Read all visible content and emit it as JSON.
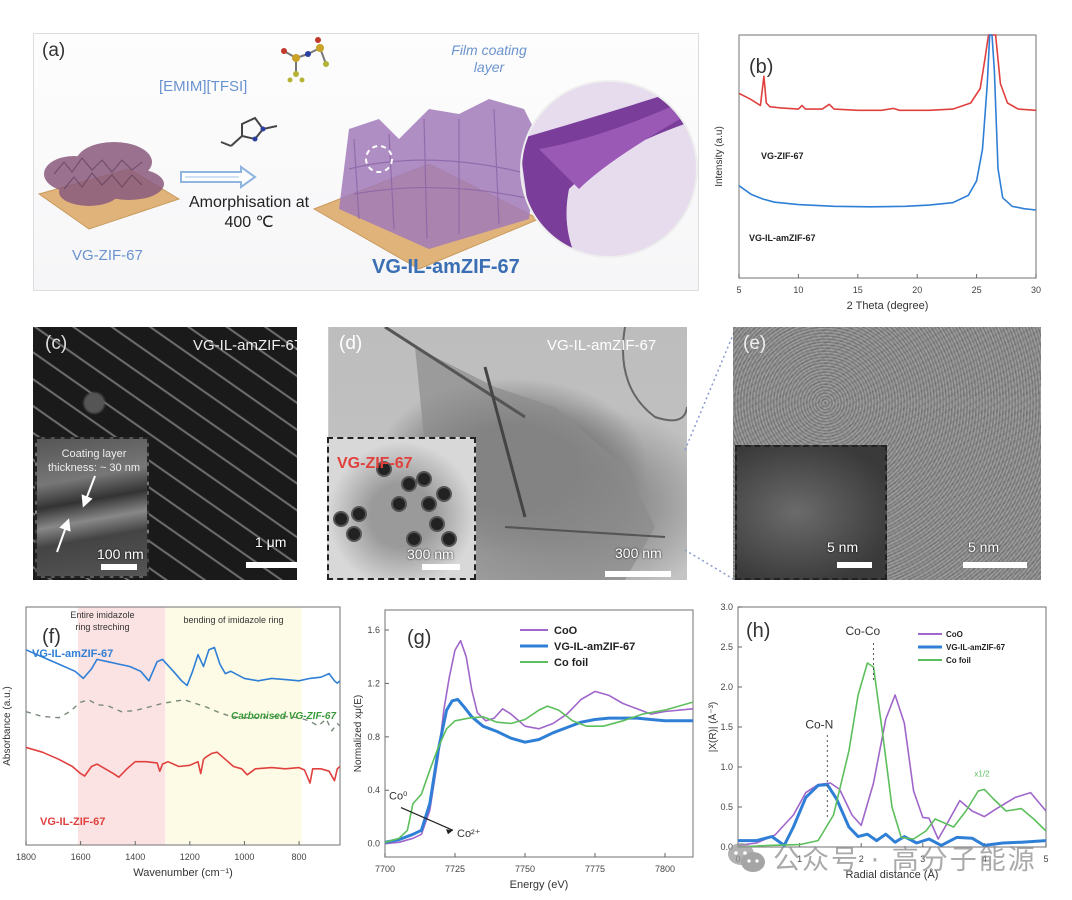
{
  "panels": {
    "a": {
      "label": "(a)",
      "ionic_liquid": "[EMIM][TFSI]",
      "film_label_line1": "Film coating",
      "film_label_line2": "layer",
      "process_line1": "Amorphisation at",
      "process_line2": "400 ℃",
      "start_material": "VG-ZIF-67",
      "product": "VG-IL-amZIF-67"
    },
    "c": {
      "label": "(c)",
      "title": "VG-IL-amZIF-67",
      "inset_note_line1": "Coating layer",
      "inset_note_line2": "thickness: ~ 30 nm",
      "inset_scale": "100 nm",
      "main_scale": "1 μm"
    },
    "d": {
      "label": "(d)",
      "title": "VG-IL-amZIF-67",
      "inset_title": "VG-ZIF-67",
      "inset_scale": "300 nm",
      "main_scale": "300 nm"
    },
    "e": {
      "label": "(e)",
      "inset_scale": "5 nm",
      "main_scale": "5 nm"
    }
  },
  "colors": {
    "red": "#e0413f",
    "blue": "#2f7fd6",
    "purple": "#a066c9",
    "green": "#5cbf5c",
    "dark_green": "#3a9a3a",
    "pink_band": "#fbe3e3",
    "yellow_band": "#fdfbe6",
    "product_blue": "#3a6fb3",
    "label_blue": "#6a93cf"
  },
  "chart_data": [
    {
      "id": "b",
      "panel_label": "(b)",
      "type": "line",
      "title": "",
      "xlabel": "2 Theta (degree)",
      "ylabel": "Intensity (a.u)",
      "xlim": [
        5,
        30
      ],
      "ylim": [
        0,
        10
      ],
      "xticks": [
        5,
        10,
        15,
        20,
        25,
        30
      ],
      "series": [
        {
          "name": "VG-ZIF-67",
          "color": "#e0413f",
          "x": [
            5,
            6,
            6.8,
            7.1,
            7.3,
            7.6,
            8.5,
            10,
            10.3,
            10.6,
            12,
            12.6,
            13,
            15,
            17,
            18,
            18.5,
            21,
            23,
            24.5,
            25.3,
            25.7,
            26.0,
            26.3,
            26.6,
            27.0,
            27.6,
            28.5,
            30
          ],
          "y": [
            7.6,
            7.35,
            7.1,
            8.3,
            7.2,
            7.05,
            7.0,
            6.95,
            7.1,
            6.95,
            6.95,
            7.15,
            6.95,
            6.9,
            6.9,
            6.98,
            6.9,
            6.9,
            6.95,
            7.2,
            7.8,
            9.0,
            10,
            10,
            10,
            8.0,
            7.2,
            6.95,
            6.9
          ]
        },
        {
          "name": "VG-IL-amZIF-67",
          "color": "#2f7fd6",
          "x": [
            5,
            6,
            7,
            8,
            10,
            13,
            16,
            19,
            21,
            23,
            24.3,
            25.0,
            25.5,
            25.9,
            26.1,
            26.3,
            26.5,
            26.8,
            27.2,
            28,
            29,
            30
          ],
          "y": [
            3.8,
            3.45,
            3.25,
            3.12,
            3.02,
            2.95,
            2.93,
            2.95,
            3.0,
            3.1,
            3.4,
            4.0,
            5.3,
            8.0,
            10,
            10,
            8.5,
            4.5,
            3.3,
            2.95,
            2.85,
            2.8
          ]
        }
      ],
      "annotations": [
        "VG-ZIF-67",
        "VG-IL-amZIF-67"
      ]
    },
    {
      "id": "f",
      "panel_label": "(f)",
      "type": "line",
      "xlabel": "Wavenumber (cm⁻¹)",
      "ylabel": "Absorbance (a.u.)",
      "xlim": [
        1800,
        650
      ],
      "ylim": [
        0,
        10
      ],
      "xticks": [
        1800,
        1600,
        1400,
        1200,
        1000,
        800
      ],
      "bands": [
        {
          "from": 1610,
          "to": 1290,
          "label_line1": "Entire imidazole",
          "label_line2": "ring streching",
          "color": "#fbe3e3"
        },
        {
          "from": 1290,
          "to": 790,
          "label": "bending of imidazole ring",
          "color": "#fdfbe6"
        }
      ],
      "series": [
        {
          "name": "VG-IL-amZIF-67",
          "color": "#2f7fd6",
          "style": "solid",
          "x": [
            1800,
            1740,
            1680,
            1620,
            1590,
            1560,
            1540,
            1500,
            1460,
            1420,
            1380,
            1350,
            1320,
            1300,
            1260,
            1230,
            1210,
            1190,
            1170,
            1150,
            1130,
            1110,
            1090,
            1070,
            1050,
            1000,
            950,
            900,
            850,
            800,
            760,
            720,
            690,
            670,
            660,
            650
          ],
          "y": [
            8.2,
            7.9,
            7.6,
            7.3,
            7.0,
            7.4,
            7.8,
            7.7,
            7.6,
            7.5,
            7.3,
            6.9,
            7.7,
            7.8,
            7.3,
            6.9,
            6.7,
            7.3,
            8.0,
            7.5,
            8.2,
            8.3,
            7.6,
            7.2,
            7.3,
            7.0,
            6.9,
            7.0,
            6.95,
            6.9,
            7.0,
            7.05,
            7.2,
            6.9,
            6.8,
            6.9
          ]
        },
        {
          "name": "Carbonised VG-ZIF-67",
          "color": "#7a8a7a",
          "style": "dashed",
          "x": [
            1800,
            1740,
            1680,
            1640,
            1600,
            1570,
            1540,
            1500,
            1450,
            1400,
            1350,
            1300,
            1250,
            1220,
            1180,
            1140,
            1100,
            1050,
            1000,
            950,
            900,
            850,
            800,
            760,
            730,
            700,
            680,
            660,
            650
          ],
          "y": [
            5.6,
            5.4,
            5.35,
            5.6,
            6.0,
            6.1,
            5.9,
            5.85,
            5.6,
            5.65,
            5.8,
            5.95,
            6.05,
            6.1,
            5.95,
            5.8,
            5.6,
            5.4,
            5.35,
            5.35,
            5.4,
            5.4,
            5.35,
            5.2,
            5.0,
            5.3,
            4.8,
            5.1,
            5.0
          ]
        },
        {
          "name": "VG-IL-ZIF-67",
          "color": "#e0413f",
          "style": "solid",
          "x": [
            1800,
            1740,
            1680,
            1630,
            1600,
            1585,
            1560,
            1540,
            1510,
            1480,
            1460,
            1430,
            1400,
            1360,
            1320,
            1310,
            1300,
            1280,
            1240,
            1200,
            1170,
            1160,
            1150,
            1140,
            1120,
            1100,
            1070,
            1040,
            1010,
            990,
            960,
            900,
            850,
            800,
            780,
            760,
            750,
            720,
            690,
            670,
            660,
            650
          ],
          "y": [
            4.1,
            3.9,
            3.6,
            3.3,
            3.0,
            2.9,
            3.3,
            3.4,
            3.2,
            3.0,
            2.85,
            3.2,
            3.5,
            3.5,
            3.45,
            3.1,
            3.4,
            3.5,
            3.3,
            3.35,
            3.5,
            3.0,
            3.6,
            3.7,
            3.85,
            3.9,
            3.6,
            3.3,
            3.2,
            2.95,
            3.2,
            3.25,
            3.2,
            3.25,
            3.15,
            2.6,
            3.2,
            3.2,
            3.1,
            2.7,
            3.2,
            3.3
          ]
        }
      ],
      "annotations": [
        "VG-IL-amZIF-67",
        "Carbonised VG-ZIF-67",
        "VG-IL-ZIF-67"
      ]
    },
    {
      "id": "g",
      "panel_label": "(g)",
      "type": "line",
      "xlabel": "Energy (eV)",
      "ylabel": "Normalized xμ(E)",
      "xlim": [
        7700,
        7810
      ],
      "ylim": [
        -0.1,
        1.75
      ],
      "xticks": [
        7700,
        7725,
        7750,
        7775,
        7800
      ],
      "yticks": [
        0.0,
        0.4,
        0.8,
        1.2,
        1.6
      ],
      "legend": "top-right",
      "series": [
        {
          "name": "CoO",
          "color": "#a066c9",
          "x": [
            7700,
            7705,
            7710,
            7713,
            7716,
            7719,
            7721,
            7723,
            7725,
            7727,
            7729,
            7731,
            7733,
            7736,
            7739,
            7742,
            7745,
            7750,
            7755,
            7760,
            7765,
            7770,
            7775,
            7780,
            7785,
            7790,
            7795,
            7800,
            7810
          ],
          "y": [
            0.0,
            0.01,
            0.04,
            0.07,
            0.25,
            0.65,
            1.0,
            1.25,
            1.45,
            1.52,
            1.4,
            1.15,
            0.98,
            0.92,
            0.94,
            1.01,
            0.97,
            0.88,
            0.86,
            0.9,
            0.97,
            1.08,
            1.14,
            1.11,
            1.05,
            1.01,
            0.97,
            0.99,
            1.01
          ]
        },
        {
          "name": "VG-IL-amZIF-67",
          "color": "#2f7fd6",
          "x": [
            7700,
            7705,
            7710,
            7713,
            7716,
            7719,
            7722,
            7724,
            7726,
            7728,
            7731,
            7735,
            7740,
            7745,
            7750,
            7755,
            7760,
            7765,
            7770,
            7775,
            7780,
            7785,
            7790,
            7795,
            7800,
            7810
          ],
          "y": [
            0.01,
            0.03,
            0.07,
            0.1,
            0.3,
            0.7,
            1.0,
            1.07,
            1.08,
            1.03,
            0.95,
            0.88,
            0.84,
            0.79,
            0.76,
            0.78,
            0.83,
            0.87,
            0.91,
            0.93,
            0.94,
            0.94,
            0.94,
            0.93,
            0.92,
            0.92
          ]
        },
        {
          "name": "Co foil",
          "color": "#5cbf5c",
          "x": [
            7700,
            7705,
            7708,
            7710,
            7713,
            7716,
            7719,
            7722,
            7725,
            7730,
            7735,
            7740,
            7745,
            7750,
            7755,
            7758,
            7762,
            7767,
            7772,
            7778,
            7785,
            7792,
            7800,
            7810
          ],
          "y": [
            0.01,
            0.04,
            0.1,
            0.3,
            0.37,
            0.55,
            0.72,
            0.86,
            0.92,
            0.94,
            0.95,
            0.91,
            0.9,
            0.93,
            1.0,
            1.03,
            1.0,
            0.92,
            0.88,
            0.88,
            0.92,
            0.97,
            1.0,
            1.06
          ]
        }
      ],
      "annotations": [
        {
          "text": "Co⁰",
          "arrow_to": "Co²⁺"
        }
      ]
    },
    {
      "id": "h",
      "panel_label": "(h)",
      "type": "line",
      "xlabel": "Radial distance (Å)",
      "ylabel": "|X(R)| (Å⁻³)",
      "xlim": [
        0,
        5
      ],
      "ylim": [
        0,
        3.0
      ],
      "xticks": [
        0,
        1,
        2,
        3,
        4,
        5
      ],
      "yticks": [
        0.0,
        0.5,
        1.0,
        1.5,
        2.0,
        2.5,
        3.0
      ],
      "legend": "top-right",
      "series": [
        {
          "name": "CoO",
          "color": "#a066c9",
          "x": [
            0,
            0.3,
            0.6,
            0.9,
            1.1,
            1.3,
            1.5,
            1.65,
            1.85,
            2.0,
            2.2,
            2.4,
            2.55,
            2.7,
            2.85,
            3.0,
            3.1,
            3.25,
            3.4,
            3.6,
            3.8,
            4.0,
            4.2,
            4.5,
            4.75,
            5.0
          ],
          "y": [
            0.02,
            0.05,
            0.15,
            0.4,
            0.68,
            0.78,
            0.8,
            0.72,
            0.4,
            0.27,
            0.8,
            1.6,
            1.9,
            1.55,
            0.7,
            0.37,
            0.36,
            0.1,
            0.3,
            0.58,
            0.45,
            0.38,
            0.48,
            0.62,
            0.68,
            0.45
          ]
        },
        {
          "name": "VG-IL-amZIF-67",
          "color": "#2f7fd6",
          "x": [
            0,
            0.3,
            0.55,
            0.75,
            0.9,
            1.1,
            1.3,
            1.45,
            1.6,
            1.8,
            1.95,
            2.1,
            2.25,
            2.4,
            2.55,
            2.7,
            2.9,
            3.1,
            3.3,
            3.55,
            3.8,
            4.0,
            4.3,
            4.6,
            5.0
          ],
          "y": [
            0.08,
            0.08,
            0.13,
            0.02,
            0.25,
            0.62,
            0.77,
            0.78,
            0.6,
            0.25,
            0.13,
            0.16,
            0.08,
            0.16,
            0.06,
            0.13,
            0.05,
            0.1,
            0.02,
            0.12,
            0.11,
            0.02,
            0.05,
            0.06,
            0.08
          ]
        },
        {
          "name": "Co foil",
          "color": "#5cbf5c",
          "x": [
            0,
            0.5,
            1.0,
            1.3,
            1.55,
            1.8,
            1.95,
            2.1,
            2.2,
            2.35,
            2.5,
            2.65,
            2.85,
            3.05,
            3.2,
            3.35,
            3.5,
            3.7,
            3.9,
            4.0,
            4.15,
            4.35,
            4.6,
            4.8,
            5.0
          ],
          "y": [
            0.0,
            0.02,
            0.03,
            0.08,
            0.4,
            1.2,
            1.9,
            2.3,
            2.25,
            1.4,
            0.5,
            0.12,
            0.1,
            0.2,
            0.35,
            0.3,
            0.25,
            0.45,
            0.7,
            0.72,
            0.6,
            0.45,
            0.48,
            0.35,
            0.2
          ]
        }
      ],
      "annotations": [
        {
          "text": "Co-Co",
          "x": 2.2
        },
        {
          "text": "Co-N",
          "x": 1.45
        },
        {
          "text": "x1/2",
          "x": 4.0
        }
      ]
    }
  ],
  "watermark": {
    "text": "公众号 · 高分子能源"
  }
}
